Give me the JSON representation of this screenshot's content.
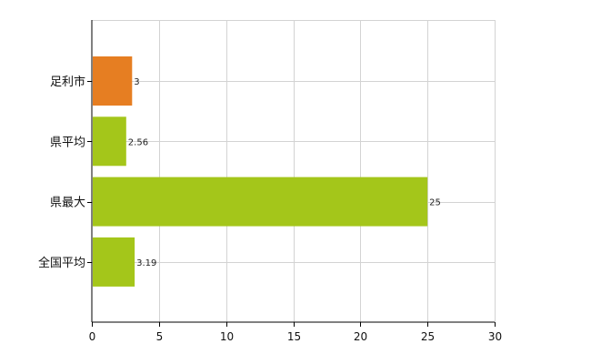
{
  "chart_data": {
    "type": "bar",
    "orientation": "horizontal",
    "categories": [
      "足利市",
      "県平均",
      "県最大",
      "全国平均"
    ],
    "values": [
      3,
      2.56,
      25,
      3.19
    ],
    "value_labels": [
      "3",
      "2.56",
      "25",
      "3.19"
    ],
    "xlim": [
      0,
      30
    ],
    "xticks": [
      0,
      5,
      10,
      15,
      20,
      25,
      30
    ],
    "xtick_labels": [
      "0",
      "5",
      "10",
      "15",
      "20",
      "25",
      "30"
    ],
    "grid": true,
    "bar_colors": [
      "#e67e22",
      "#a4c61a",
      "#a4c61a",
      "#a4c61a"
    ],
    "title": "",
    "xlabel": "",
    "ylabel": ""
  }
}
